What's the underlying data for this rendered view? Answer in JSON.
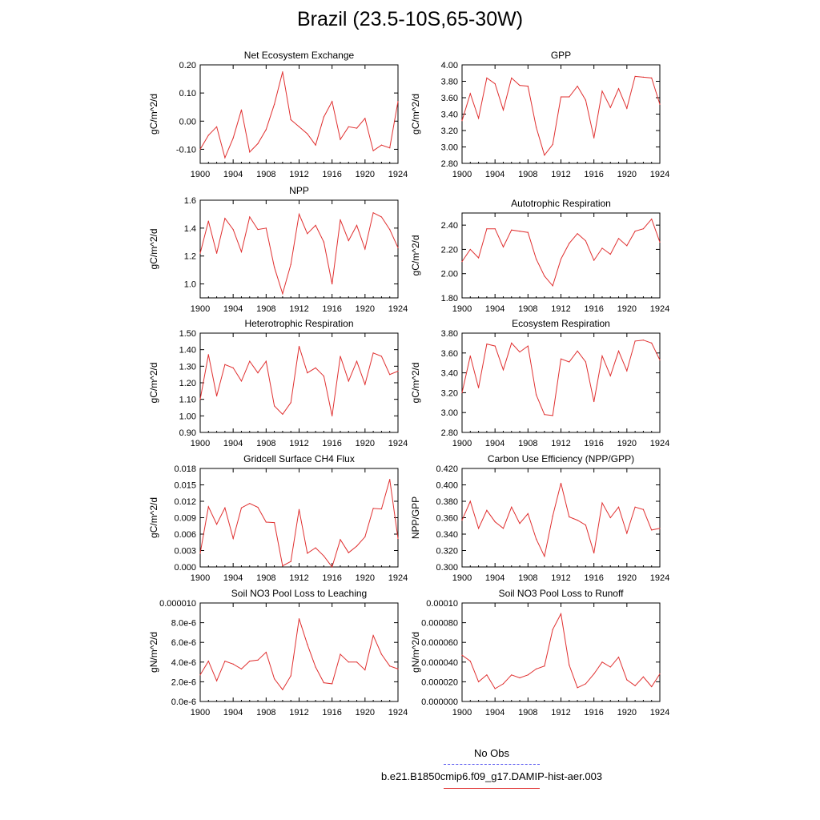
{
  "title": "Brazil (23.5-10S,65-30W)",
  "legend": {
    "obs_label": "No Obs",
    "obs_color": "#5a5af0",
    "model_label": "b.e21.B1850cmip6.f09_g17.DAMIP-hist-aer.003",
    "model_color": "#e03030"
  },
  "chart_data": [
    {
      "type": "line",
      "title": "Net Ecosystem Exchange",
      "ylabel": "gC/m^2/d",
      "xlim": [
        1900,
        1924
      ],
      "ylim": [
        -0.15,
        0.2
      ],
      "yticks": [
        -0.1,
        0.0,
        0.1,
        0.2
      ],
      "ytick_labels": [
        "-0.10",
        "0.00",
        "0.10",
        "0.20"
      ],
      "xticks": [
        1900,
        1904,
        1908,
        1912,
        1916,
        1920,
        1924
      ],
      "x": [
        1900,
        1901,
        1902,
        1903,
        1904,
        1905,
        1906,
        1907,
        1908,
        1909,
        1910,
        1911,
        1912,
        1913,
        1914,
        1915,
        1916,
        1917,
        1918,
        1919,
        1920,
        1921,
        1922,
        1923,
        1924
      ],
      "values": [
        -0.1,
        -0.05,
        -0.02,
        -0.13,
        -0.06,
        0.04,
        -0.11,
        -0.08,
        -0.03,
        0.06,
        0.175,
        0.005,
        -0.02,
        -0.045,
        -0.085,
        0.015,
        0.07,
        -0.065,
        -0.02,
        -0.025,
        0.01,
        -0.105,
        -0.085,
        -0.095,
        0.07
      ],
      "color": "#e03030"
    },
    {
      "type": "line",
      "title": "GPP",
      "ylabel": "gC/m^2/d",
      "xlim": [
        1900,
        1924
      ],
      "ylim": [
        2.8,
        4.0
      ],
      "yticks": [
        2.8,
        3.0,
        3.2,
        3.4,
        3.6,
        3.8,
        4.0
      ],
      "ytick_labels": [
        "2.80",
        "3.00",
        "3.20",
        "3.40",
        "3.60",
        "3.80",
        "4.00"
      ],
      "xticks": [
        1900,
        1904,
        1908,
        1912,
        1916,
        1920,
        1924
      ],
      "x": [
        1900,
        1901,
        1902,
        1903,
        1904,
        1905,
        1906,
        1907,
        1908,
        1909,
        1910,
        1911,
        1912,
        1913,
        1914,
        1915,
        1916,
        1917,
        1918,
        1919,
        1920,
        1921,
        1922,
        1923,
        1924
      ],
      "values": [
        3.32,
        3.65,
        3.35,
        3.84,
        3.77,
        3.45,
        3.84,
        3.75,
        3.74,
        3.24,
        2.9,
        3.03,
        3.61,
        3.61,
        3.74,
        3.57,
        3.11,
        3.68,
        3.48,
        3.71,
        3.47,
        3.86,
        3.85,
        3.84,
        3.52
      ],
      "color": "#e03030"
    },
    {
      "type": "line",
      "title": "NPP",
      "ylabel": "gC/m^2/d",
      "xlim": [
        1900,
        1924
      ],
      "ylim": [
        0.9,
        1.6
      ],
      "yticks": [
        1.0,
        1.2,
        1.4,
        1.6
      ],
      "ytick_labels": [
        "1.0",
        "1.2",
        "1.4",
        "1.6"
      ],
      "xticks": [
        1900,
        1904,
        1908,
        1912,
        1916,
        1920,
        1924
      ],
      "x": [
        1900,
        1901,
        1902,
        1903,
        1904,
        1905,
        1906,
        1907,
        1908,
        1909,
        1910,
        1911,
        1912,
        1913,
        1914,
        1915,
        1916,
        1917,
        1918,
        1919,
        1920,
        1921,
        1922,
        1923,
        1924
      ],
      "values": [
        1.22,
        1.45,
        1.22,
        1.47,
        1.39,
        1.23,
        1.48,
        1.39,
        1.4,
        1.12,
        0.93,
        1.14,
        1.5,
        1.36,
        1.42,
        1.3,
        1.0,
        1.46,
        1.31,
        1.42,
        1.25,
        1.51,
        1.48,
        1.39,
        1.26
      ],
      "color": "#e03030"
    },
    {
      "type": "line",
      "title": "Autotrophic Respiration",
      "ylabel": "gC/m^2/d",
      "xlim": [
        1900,
        1924
      ],
      "ylim": [
        1.8,
        2.5
      ],
      "yticks": [
        1.8,
        2.0,
        2.2,
        2.4
      ],
      "ytick_labels": [
        "1.80",
        "2.00",
        "2.20",
        "2.40"
      ],
      "xticks": [
        1900,
        1904,
        1908,
        1912,
        1916,
        1920,
        1924
      ],
      "x": [
        1900,
        1901,
        1902,
        1903,
        1904,
        1905,
        1906,
        1907,
        1908,
        1909,
        1910,
        1911,
        1912,
        1913,
        1914,
        1915,
        1916,
        1917,
        1918,
        1919,
        1920,
        1921,
        1922,
        1923,
        1924
      ],
      "values": [
        2.1,
        2.2,
        2.13,
        2.37,
        2.37,
        2.22,
        2.36,
        2.35,
        2.34,
        2.12,
        1.98,
        1.9,
        2.12,
        2.25,
        2.33,
        2.27,
        2.11,
        2.21,
        2.16,
        2.29,
        2.23,
        2.35,
        2.37,
        2.45,
        2.26
      ],
      "color": "#e03030"
    },
    {
      "type": "line",
      "title": "Heterotrophic Respiration",
      "ylabel": "gC/m^2/d",
      "xlim": [
        1900,
        1924
      ],
      "ylim": [
        0.9,
        1.5
      ],
      "yticks": [
        0.9,
        1.0,
        1.1,
        1.2,
        1.3,
        1.4,
        1.5
      ],
      "ytick_labels": [
        "0.90",
        "1.00",
        "1.10",
        "1.20",
        "1.30",
        "1.40",
        "1.50"
      ],
      "xticks": [
        1900,
        1904,
        1908,
        1912,
        1916,
        1920,
        1924
      ],
      "x": [
        1900,
        1901,
        1902,
        1903,
        1904,
        1905,
        1906,
        1907,
        1908,
        1909,
        1910,
        1911,
        1912,
        1913,
        1914,
        1915,
        1916,
        1917,
        1918,
        1919,
        1920,
        1921,
        1922,
        1923,
        1924
      ],
      "values": [
        1.1,
        1.37,
        1.12,
        1.31,
        1.29,
        1.21,
        1.33,
        1.26,
        1.33,
        1.06,
        1.01,
        1.08,
        1.42,
        1.26,
        1.29,
        1.24,
        1.0,
        1.36,
        1.21,
        1.33,
        1.19,
        1.38,
        1.36,
        1.25,
        1.27
      ],
      "color": "#e03030"
    },
    {
      "type": "line",
      "title": "Ecosystem Respiration",
      "ylabel": "gC/m^2/d",
      "xlim": [
        1900,
        1924
      ],
      "ylim": [
        2.8,
        3.8
      ],
      "yticks": [
        2.8,
        3.0,
        3.2,
        3.4,
        3.6,
        3.8
      ],
      "ytick_labels": [
        "2.80",
        "3.00",
        "3.20",
        "3.40",
        "3.60",
        "3.80"
      ],
      "xticks": [
        1900,
        1904,
        1908,
        1912,
        1916,
        1920,
        1924
      ],
      "x": [
        1900,
        1901,
        1902,
        1903,
        1904,
        1905,
        1906,
        1907,
        1908,
        1909,
        1910,
        1911,
        1912,
        1913,
        1914,
        1915,
        1916,
        1917,
        1918,
        1919,
        1920,
        1921,
        1922,
        1923,
        1924
      ],
      "values": [
        3.2,
        3.57,
        3.25,
        3.69,
        3.67,
        3.43,
        3.7,
        3.61,
        3.67,
        3.18,
        2.98,
        2.97,
        3.54,
        3.51,
        3.62,
        3.51,
        3.11,
        3.57,
        3.37,
        3.62,
        3.42,
        3.72,
        3.73,
        3.7,
        3.53
      ],
      "color": "#e03030"
    },
    {
      "type": "line",
      "title": "Gridcell Surface CH4 Flux",
      "ylabel": "gC/m^2/d",
      "xlim": [
        1900,
        1924
      ],
      "ylim": [
        0,
        0.018
      ],
      "yticks": [
        0,
        0.003,
        0.006,
        0.009,
        0.012,
        0.015,
        0.018
      ],
      "ytick_labels": [
        "0.000",
        "0.003",
        "0.006",
        "0.009",
        "0.012",
        "0.015",
        "0.018"
      ],
      "xticks": [
        1900,
        1904,
        1908,
        1912,
        1916,
        1920,
        1924
      ],
      "x": [
        1900,
        1901,
        1902,
        1903,
        1904,
        1905,
        1906,
        1907,
        1908,
        1909,
        1910,
        1911,
        1912,
        1913,
        1914,
        1915,
        1916,
        1917,
        1918,
        1919,
        1920,
        1921,
        1922,
        1923,
        1924
      ],
      "values": [
        0.0025,
        0.011,
        0.0078,
        0.0108,
        0.0052,
        0.0108,
        0.0116,
        0.0109,
        0.0082,
        0.0081,
        0.0002,
        0.001,
        0.0105,
        0.0025,
        0.0035,
        0.002,
        0.0,
        0.005,
        0.0026,
        0.0038,
        0.0055,
        0.0107,
        0.0106,
        0.016,
        0.0052
      ],
      "color": "#e03030"
    },
    {
      "type": "line",
      "title": "Carbon Use Efficiency (NPP/GPP)",
      "ylabel": "NPP/GPP",
      "xlim": [
        1900,
        1924
      ],
      "ylim": [
        0.3,
        0.42
      ],
      "yticks": [
        0.3,
        0.32,
        0.34,
        0.36,
        0.38,
        0.4,
        0.42
      ],
      "ytick_labels": [
        "0.300",
        "0.320",
        "0.340",
        "0.360",
        "0.380",
        "0.400",
        "0.420"
      ],
      "xticks": [
        1900,
        1904,
        1908,
        1912,
        1916,
        1920,
        1924
      ],
      "x": [
        1900,
        1901,
        1902,
        1903,
        1904,
        1905,
        1906,
        1907,
        1908,
        1909,
        1910,
        1911,
        1912,
        1913,
        1914,
        1915,
        1916,
        1917,
        1918,
        1919,
        1920,
        1921,
        1922,
        1923,
        1924
      ],
      "values": [
        0.357,
        0.38,
        0.347,
        0.369,
        0.355,
        0.347,
        0.373,
        0.353,
        0.365,
        0.334,
        0.313,
        0.362,
        0.402,
        0.361,
        0.357,
        0.351,
        0.317,
        0.378,
        0.36,
        0.373,
        0.341,
        0.373,
        0.37,
        0.345,
        0.347
      ],
      "color": "#e03030"
    },
    {
      "type": "line",
      "title": "Soil NO3 Pool Loss to Leaching",
      "ylabel": "gN/m^2/d",
      "xlim": [
        1900,
        1924
      ],
      "ylim": [
        0,
        1e-05
      ],
      "yticks": [
        0,
        2e-06,
        4e-06,
        6e-06,
        8e-06,
        1e-05
      ],
      "ytick_labels": [
        "0.0e-6",
        "2.0e-6",
        "4.0e-6",
        "6.0e-6",
        "8.0e-6",
        "0.000010"
      ],
      "xticks": [
        1900,
        1904,
        1908,
        1912,
        1916,
        1920,
        1924
      ],
      "x": [
        1900,
        1901,
        1902,
        1903,
        1904,
        1905,
        1906,
        1907,
        1908,
        1909,
        1910,
        1911,
        1912,
        1913,
        1914,
        1915,
        1916,
        1917,
        1918,
        1919,
        1920,
        1921,
        1922,
        1923,
        1924
      ],
      "values": [
        2.7e-06,
        4.1e-06,
        2.1e-06,
        4.1e-06,
        3.8e-06,
        3.3e-06,
        4.1e-06,
        4.2e-06,
        5e-06,
        2.3e-06,
        1.2e-06,
        2.6e-06,
        8.4e-06,
        5.8e-06,
        3.5e-06,
        1.9e-06,
        1.8e-06,
        4.8e-06,
        4e-06,
        4e-06,
        3.2e-06,
        6.7e-06,
        4.8e-06,
        3.6e-06,
        3.3e-06
      ],
      "color": "#e03030"
    },
    {
      "type": "line",
      "title": "Soil NO3 Pool Loss to Runoff",
      "ylabel": "gN/m^2/d",
      "xlim": [
        1900,
        1924
      ],
      "ylim": [
        0,
        0.0001
      ],
      "yticks": [
        0,
        2e-05,
        4e-05,
        6e-05,
        8e-05,
        0.0001
      ],
      "ytick_labels": [
        "0.000000",
        "0.000020",
        "0.000040",
        "0.000060",
        "0.000080",
        "0.00010"
      ],
      "xticks": [
        1900,
        1904,
        1908,
        1912,
        1916,
        1920,
        1924
      ],
      "x": [
        1900,
        1901,
        1902,
        1903,
        1904,
        1905,
        1906,
        1907,
        1908,
        1909,
        1910,
        1911,
        1912,
        1913,
        1914,
        1915,
        1916,
        1917,
        1918,
        1919,
        1920,
        1921,
        1922,
        1923,
        1924
      ],
      "values": [
        4.7e-05,
        4.1e-05,
        2e-05,
        2.7e-05,
        1.3e-05,
        1.8e-05,
        2.7e-05,
        2.4e-05,
        2.7e-05,
        3.3e-05,
        3.6e-05,
        7.3e-05,
        8.9e-05,
        3.7e-05,
        1.4e-05,
        1.8e-05,
        2.8e-05,
        4e-05,
        3.5e-05,
        4.5e-05,
        2.2e-05,
        1.6e-05,
        2.5e-05,
        1.5e-05,
        2.8e-05
      ],
      "color": "#e03030"
    }
  ]
}
